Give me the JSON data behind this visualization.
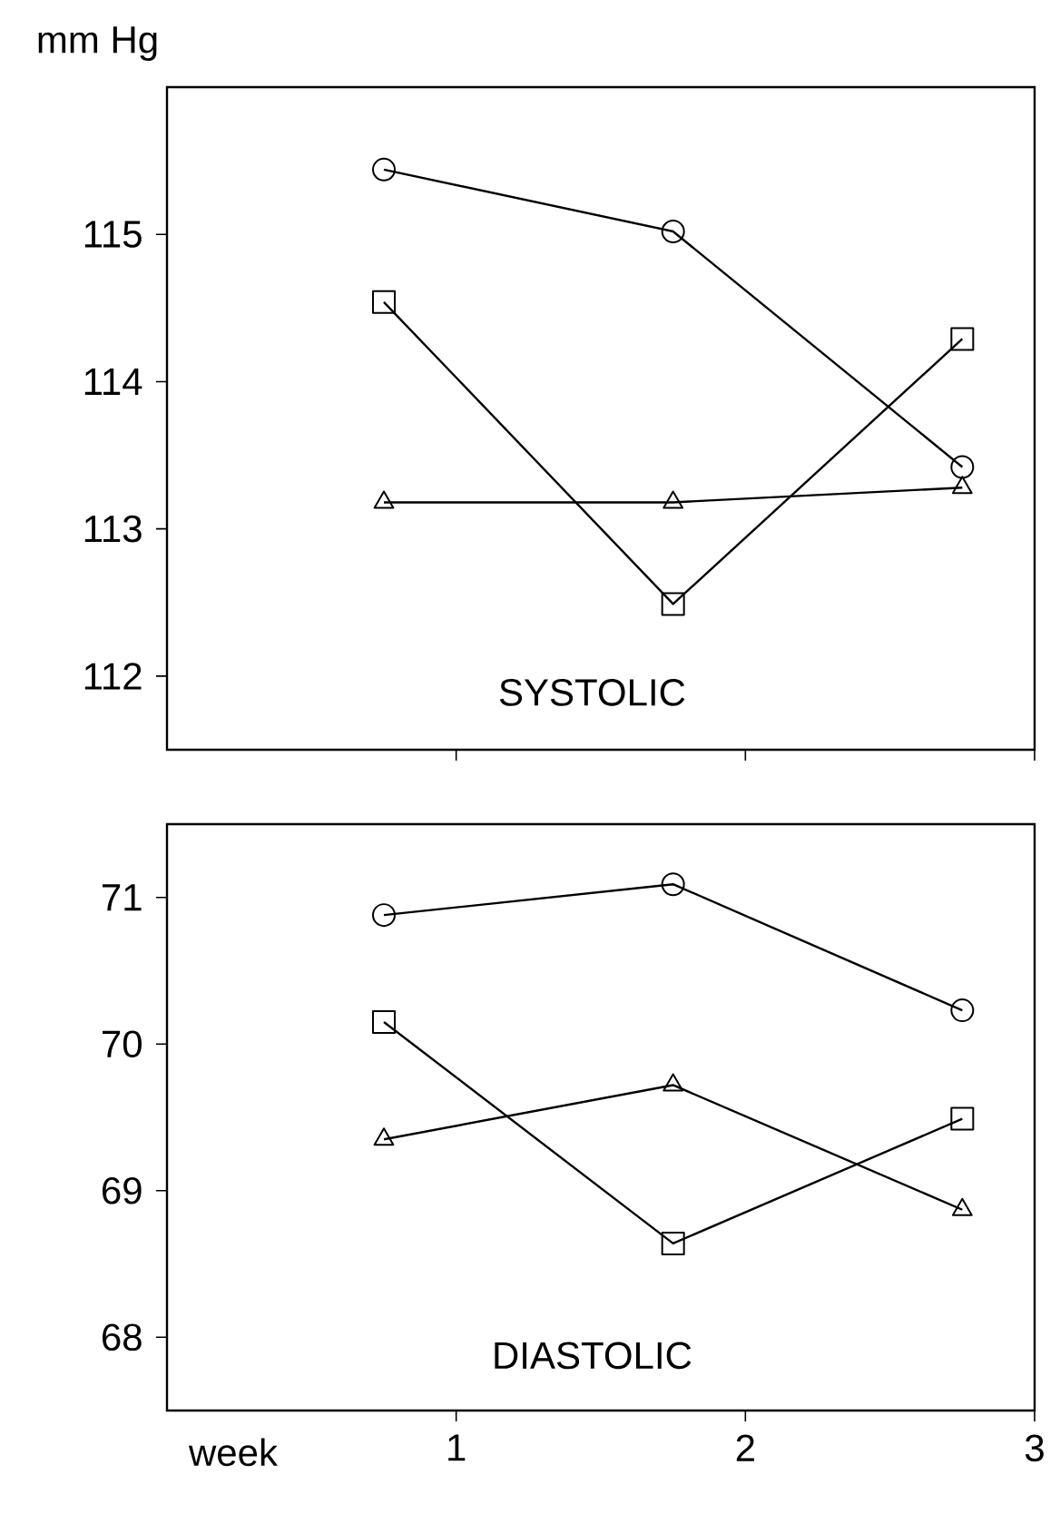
{
  "chart_data": [
    {
      "type": "line",
      "title": "SYSTOLIC",
      "ylabel": "mm Hg",
      "x": [
        0.75,
        1.75,
        2.75
      ],
      "xlim": [
        0,
        3
      ],
      "xticks": [
        1,
        2,
        3
      ],
      "ylim": [
        111.5,
        116
      ],
      "yticks": [
        112,
        113,
        114,
        115
      ],
      "tick_labels": "y",
      "series": [
        {
          "color": "#000000",
          "marker": "circle",
          "values": [
            115.44,
            115.02,
            113.42
          ]
        },
        {
          "color": "#000000",
          "marker": "square",
          "values": [
            114.54,
            112.49,
            114.29
          ]
        },
        {
          "color": "#000000",
          "marker": "triangle",
          "values": [
            113.18,
            113.18,
            113.28
          ]
        }
      ]
    },
    {
      "type": "line",
      "title": "DIASTOLIC",
      "xlabel": "week",
      "x": [
        0.75,
        1.75,
        2.75
      ],
      "xlim": [
        0,
        3
      ],
      "xticks": [
        1,
        2,
        3
      ],
      "ylim": [
        67.5,
        71.5
      ],
      "yticks": [
        68,
        69,
        70,
        71
      ],
      "series": [
        {
          "color": "#000000",
          "marker": "circle",
          "values": [
            70.88,
            71.09,
            70.23
          ]
        },
        {
          "color": "#000000",
          "marker": "square",
          "values": [
            70.15,
            68.64,
            69.49
          ]
        },
        {
          "color": "#000000",
          "marker": "triangle",
          "values": [
            69.35,
            69.72,
            68.87
          ]
        }
      ]
    }
  ]
}
